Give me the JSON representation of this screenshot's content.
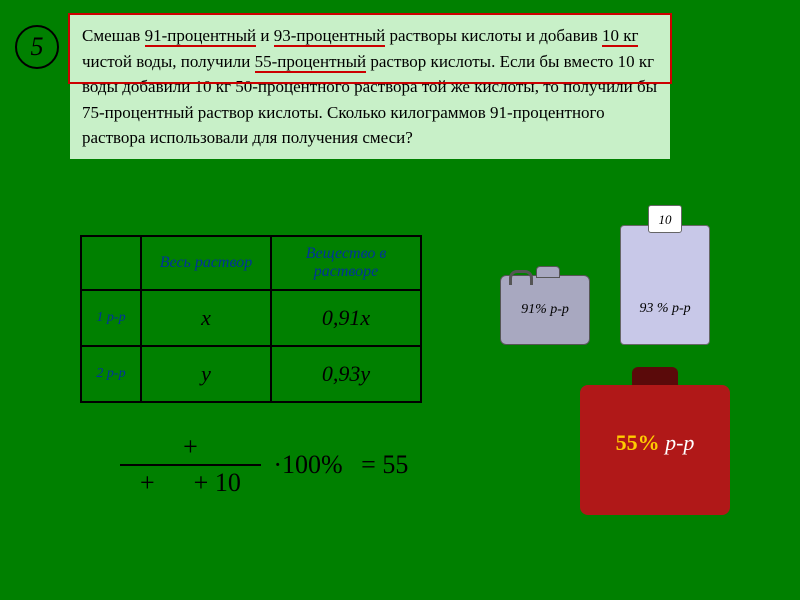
{
  "slide_number": "5",
  "problem": {
    "line1_a": "Смешав ",
    "line1_b": "91-процентный",
    "line1_c": " и ",
    "line1_d": "93-процентный",
    "line1_e": " растворы кислоты и добавив ",
    "line1_f": "10 кг",
    "line1_g": " чистой воды, получили ",
    "line1_h": "55-процентный",
    "line1_i": " раствор кислоты.",
    "rest": " Если бы вместо 10 кг воды добавили 10 кг 50-процентного раствора той же кислоты, то получили бы 75-процентный раствор кислоты. Сколько килограммов 91-процентного раствора использовали для получения смеси?"
  },
  "table": {
    "header_a": "Весь раствор",
    "header_b": "Вещество в растворе",
    "row1_label": "1 р-р",
    "row1_a": "x",
    "row1_b": "0,91x",
    "row2_label": "2 р-р",
    "row2_a": "y",
    "row2_b": "0,93y"
  },
  "containers": {
    "can1": "91% р-р",
    "cyl": "93 % р-р",
    "cap": "10",
    "jar_a": "55%",
    "jar_b": " р-р"
  },
  "equation": {
    "num": "+",
    "den_a": "+",
    "den_b": "+ 10",
    "mult": "·100%",
    "eq": "= 55"
  },
  "colors": {
    "bg": "#008000",
    "box_bg": "#c8f0c8",
    "red_border": "#cc0000",
    "blue_text": "#003399",
    "canister": "#a8a8c0",
    "cylinder": "#c8c8e8",
    "jar": "#b01818",
    "jar_pct": "#ffcc00"
  }
}
